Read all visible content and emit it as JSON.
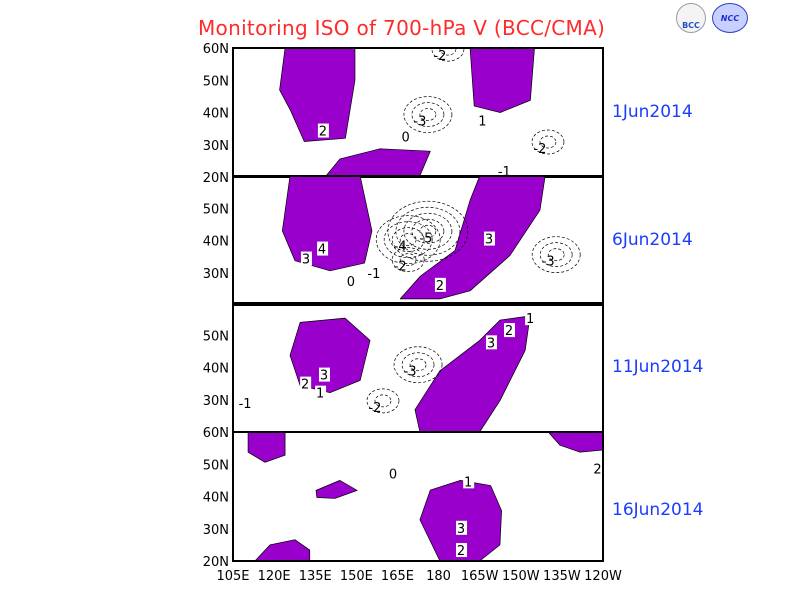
{
  "title": "Monitoring ISO of 700-hPa V (BCC/CMA)",
  "logos": [
    "BCC",
    "NCC"
  ],
  "colors": {
    "title": "#ff2a2a",
    "date": "#1a3cff",
    "shading": "#9900cc"
  },
  "chart_data": {
    "type": "contour-map",
    "variable": "700-hPa meridional wind ISO",
    "lon_range": [
      105,
      240
    ],
    "lat_range": [
      20,
      60
    ],
    "x_ticks": [
      "105E",
      "120E",
      "135E",
      "150E",
      "165E",
      "180",
      "165W",
      "150W",
      "135W",
      "120W"
    ],
    "y_ticks": [
      "20N",
      "30N",
      "40N",
      "50N",
      "60N"
    ],
    "panels": [
      {
        "date": "1Jun2014",
        "shaded": [
          [
            [
              124,
              60
            ],
            [
              149.5,
              60
            ],
            [
              149.5,
              50
            ],
            [
              146,
              32
            ],
            [
              131,
              31
            ],
            [
              126,
              40.6
            ],
            [
              122,
              47
            ]
          ],
          [
            [
              191.5,
              60
            ],
            [
              215,
              60
            ],
            [
              213.5,
              43.8
            ],
            [
              202.5,
              40
            ],
            [
              193,
              42
            ]
          ],
          [
            [
              138.6,
              20
            ],
            [
              144,
              25.6
            ],
            [
              158.6,
              28.75
            ],
            [
              177,
              28
            ],
            [
              173,
              20
            ]
          ]
        ],
        "labels": [
          {
            "t": "2",
            "lon": 137.8,
            "lat": 34.4
          },
          {
            "t": "-3",
            "lon": 173.2,
            "lat": 37.5
          },
          {
            "t": "-2",
            "lon": 180.5,
            "lat": 57.8
          },
          {
            "t": "1",
            "lon": 196,
            "lat": 37.5
          },
          {
            "t": "-2",
            "lon": 217,
            "lat": 29
          },
          {
            "t": "-1",
            "lon": 204,
            "lat": 21.9
          },
          {
            "t": "0",
            "lon": 168,
            "lat": 32.5
          }
        ]
      },
      {
        "date": "6Jun2014",
        "shaded": [
          [
            [
              125.8,
              60
            ],
            [
              151.4,
              60
            ],
            [
              155.7,
              43
            ],
            [
              153,
              33
            ],
            [
              140.4,
              30.6
            ],
            [
              127.6,
              33.75
            ],
            [
              123,
              43
            ]
          ],
          [
            [
              195,
              60
            ],
            [
              218.9,
              60
            ],
            [
              217,
              49.4
            ],
            [
              206,
              35.3
            ],
            [
              191.5,
              24.4
            ],
            [
              180.5,
              21.9
            ],
            [
              166,
              21.9
            ],
            [
              173.4,
              29
            ],
            [
              186,
              36.9
            ],
            [
              191.5,
              52.5
            ]
          ]
        ],
        "labels": [
          {
            "t": "4",
            "lon": 137.5,
            "lat": 37.5
          },
          {
            "t": "3",
            "lon": 136,
            "lat": 34.4
          },
          {
            "t": "-4",
            "lon": 166,
            "lat": 38.4
          },
          {
            "t": "-5",
            "lon": 173.2,
            "lat": 41
          },
          {
            "t": "-2",
            "lon": 166,
            "lat": 32.2
          },
          {
            "t": "-1",
            "lon": 158.6,
            "lat": 30
          },
          {
            "t": "0",
            "lon": 152.4,
            "lat": 27.5
          },
          {
            "t": "3",
            "lon": 198.4,
            "lat": 40.6
          },
          {
            "t": "2",
            "lon": 180.5,
            "lat": 26.25
          },
          {
            "t": "-3",
            "lon": 220,
            "lat": 33.75
          }
        ]
      },
      {
        "date": "11Jun2014",
        "shaded": [
          [
            [
              129.5,
              54
            ],
            [
              145.9,
              55.3
            ],
            [
              155,
              48.4
            ],
            [
              151.4,
              36
            ],
            [
              140.4,
              32.2
            ],
            [
              129.5,
              34.4
            ],
            [
              125.8,
              43.75
            ]
          ],
          [
            [
              202.4,
              54.7
            ],
            [
              213.4,
              56
            ],
            [
              211.6,
              45.3
            ],
            [
              202.4,
              29.7
            ],
            [
              195,
              20
            ],
            [
              173.2,
              20
            ],
            [
              171.4,
              26.9
            ],
            [
              180.5,
              39
            ],
            [
              195,
              48.4
            ]
          ]
        ],
        "labels": [
          {
            "t": "3",
            "lon": 138.2,
            "lat": 37.8
          },
          {
            "t": "2",
            "lon": 135.7,
            "lat": 35
          },
          {
            "t": "1",
            "lon": 132.4,
            "lat": 32.2
          },
          {
            "t": "-3",
            "lon": 169.6,
            "lat": 39
          },
          {
            "t": "-2",
            "lon": 156.8,
            "lat": 27.8
          },
          {
            "t": "-1",
            "lon": 109.4,
            "lat": 29
          },
          {
            "t": "2",
            "lon": 205.7,
            "lat": 51.6
          },
          {
            "t": "3",
            "lon": 203.5,
            "lat": 47.8
          },
          {
            "t": "1",
            "lon": 213.4,
            "lat": 55.3
          }
        ]
      },
      {
        "date": "16Jun2014",
        "shaded": [
          [
            [
              110.5,
              60
            ],
            [
              124,
              60
            ],
            [
              124,
              52.8
            ],
            [
              116.7,
              50.6
            ],
            [
              110.5,
              53.75
            ]
          ],
          [
            [
              135.3,
              41.9
            ],
            [
              144,
              45
            ],
            [
              150.3,
              41.9
            ],
            [
              142.2,
              39.4
            ],
            [
              135.6,
              39.7
            ]
          ],
          [
            [
              113,
              20
            ],
            [
              118.5,
              25
            ],
            [
              127.6,
              26.6
            ],
            [
              133,
              23.4
            ],
            [
              133,
              20
            ]
          ],
          [
            [
              180.5,
              20
            ],
            [
              173.2,
              32.8
            ],
            [
              177,
              42
            ],
            [
              188,
              45
            ],
            [
              199,
              43.4
            ],
            [
              203,
              35.6
            ],
            [
              202.4,
              25
            ],
            [
              195,
              20
            ]
          ],
          [
            [
              220,
              60
            ],
            [
              240,
              60
            ],
            [
              240,
              54.4
            ],
            [
              231.6,
              53.75
            ],
            [
              224.3,
              55.9
            ]
          ]
        ],
        "labels": [
          {
            "t": "0",
            "lon": 163.4,
            "lat": 47.2
          },
          {
            "t": "1",
            "lon": 190.8,
            "lat": 44.7
          },
          {
            "t": "3",
            "lon": 188.2,
            "lat": 30.3
          },
          {
            "t": "2",
            "lon": 188.2,
            "lat": 23.4
          },
          {
            "t": "2",
            "lon": 238,
            "lat": 48.75
          }
        ]
      }
    ]
  }
}
